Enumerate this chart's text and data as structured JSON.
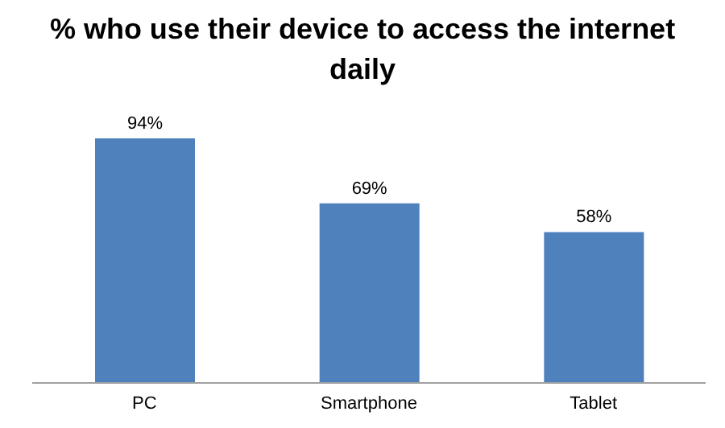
{
  "chart_data": {
    "type": "bar",
    "title": "% who use their device to access the internet daily",
    "categories": [
      "PC",
      "Smartphone",
      "Tablet"
    ],
    "values": [
      94,
      69,
      58
    ],
    "value_labels": [
      "94%",
      "69%",
      "58%"
    ],
    "color": "#4f81bd"
  }
}
